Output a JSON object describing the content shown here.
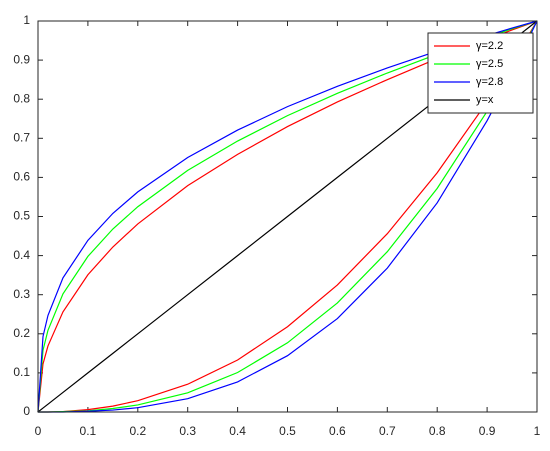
{
  "chart_data": {
    "type": "line",
    "x": [
      0,
      0.01,
      0.02,
      0.05,
      0.1,
      0.15,
      0.2,
      0.3,
      0.4,
      0.5,
      0.6,
      0.7,
      0.8,
      0.9,
      0.95,
      1
    ],
    "series": [
      {
        "name": "γ=2.2",
        "color": "#ff0000",
        "values": [
          0,
          0.123,
          0.169,
          0.256,
          0.351,
          0.422,
          0.481,
          0.579,
          0.659,
          0.73,
          0.793,
          0.85,
          0.904,
          0.953,
          0.977,
          1
        ]
      },
      {
        "name": "γ=2.5",
        "color": "#00ff00",
        "values": [
          0,
          0.158,
          0.209,
          0.302,
          0.398,
          0.468,
          0.525,
          0.618,
          0.693,
          0.758,
          0.815,
          0.867,
          0.915,
          0.959,
          0.98,
          1
        ]
      },
      {
        "name": "γ=2.8",
        "color": "#0000ff",
        "values": [
          0,
          0.193,
          0.247,
          0.343,
          0.439,
          0.508,
          0.563,
          0.651,
          0.721,
          0.781,
          0.833,
          0.88,
          0.923,
          0.963,
          0.982,
          1
        ]
      },
      {
        "name": "y=x",
        "color": "#000000",
        "values": [
          0,
          0.01,
          0.02,
          0.05,
          0.1,
          0.15,
          0.2,
          0.3,
          0.4,
          0.5,
          0.6,
          0.7,
          0.8,
          0.9,
          0.95,
          1
        ]
      },
      {
        "color": "#ff0000",
        "values": [
          0,
          0,
          0,
          0.001,
          0.006,
          0.015,
          0.029,
          0.071,
          0.133,
          0.218,
          0.325,
          0.456,
          0.612,
          0.793,
          0.893,
          1
        ]
      },
      {
        "color": "#00ff00",
        "values": [
          0,
          0,
          0,
          0.001,
          0.003,
          0.009,
          0.018,
          0.049,
          0.101,
          0.177,
          0.279,
          0.41,
          0.572,
          0.769,
          0.88,
          1
        ]
      },
      {
        "color": "#0000ff",
        "values": [
          0,
          0,
          0,
          0,
          0.002,
          0.005,
          0.011,
          0.034,
          0.077,
          0.144,
          0.239,
          0.368,
          0.535,
          0.745,
          0.866,
          1
        ]
      }
    ],
    "xlim": [
      0,
      1
    ],
    "ylim": [
      0,
      1
    ],
    "xticks": [
      0,
      0.1,
      0.2,
      0.3,
      0.4,
      0.5,
      0.6,
      0.7,
      0.8,
      0.9,
      1
    ],
    "yticks": [
      0,
      0.1,
      0.2,
      0.3,
      0.4,
      0.5,
      0.6,
      0.7,
      0.8,
      0.9,
      1
    ],
    "legend": "top-right"
  }
}
